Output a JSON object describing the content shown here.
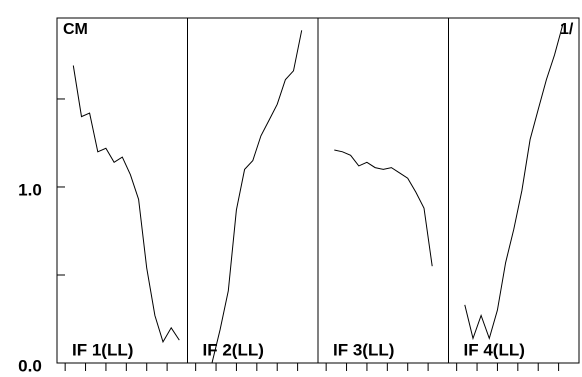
{
  "chart_data": {
    "type": "line",
    "color": "#000000",
    "annotations": [
      "CM",
      "1/"
    ],
    "ylim": [
      0,
      1.96
    ],
    "yticks": [
      {
        "value": 0,
        "label": "0.0"
      },
      {
        "value": 1,
        "label": "1.0"
      }
    ],
    "minor_yticks": [
      0.5,
      1.5
    ],
    "xlim": [
      0,
      16
    ],
    "xticks": [
      1,
      3.5,
      6,
      8.5,
      11,
      13.5
    ],
    "panels": [
      {
        "label": "IF 1(LL)",
        "x": [
          2,
          3,
          4,
          5,
          6,
          7,
          8,
          9,
          10,
          11,
          12,
          13,
          14,
          15
        ],
        "values": [
          1.69,
          1.4,
          1.42,
          1.2,
          1.22,
          1.14,
          1.17,
          1.07,
          0.93,
          0.54,
          0.27,
          0.12,
          0.2,
          0.13
        ]
      },
      {
        "label": "IF 2(LL)",
        "x": [
          2,
          3,
          4,
          5,
          6,
          7,
          8,
          9,
          10,
          11,
          12,
          13,
          14
        ],
        "values": [
          0,
          0,
          0.19,
          0.41,
          0.87,
          1.1,
          1.15,
          1.29,
          1.38,
          1.47,
          1.61,
          1.66,
          1.89
        ]
      },
      {
        "label": "IF 3(LL)",
        "x": [
          2,
          3,
          4,
          5,
          6,
          7,
          8,
          9,
          10,
          11,
          12,
          13,
          14
        ],
        "values": [
          1.21,
          1.2,
          1.18,
          1.12,
          1.14,
          1.11,
          1.1,
          1.11,
          1.08,
          1.05,
          0.97,
          0.88,
          0.55
        ]
      },
      {
        "label": "IF 4(LL)",
        "x": [
          2,
          3,
          4,
          5,
          6,
          7,
          8,
          9,
          10,
          11,
          12,
          13,
          14
        ],
        "values": [
          0.33,
          0.14,
          0.27,
          0.14,
          0.3,
          0.57,
          0.76,
          0.98,
          1.27,
          1.44,
          1.61,
          1.75,
          1.92
        ]
      }
    ]
  }
}
